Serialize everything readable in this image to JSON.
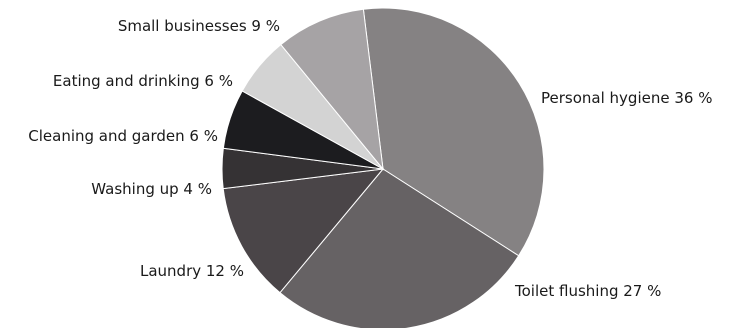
{
  "chart_data": {
    "type": "pie",
    "start_angle_deg": -97,
    "direction": "clockwise",
    "slices": [
      {
        "label": "Personal hygiene",
        "value": 36,
        "label_text": "Personal hygiene 36 %",
        "color": "#858283"
      },
      {
        "label": "Toilet flushing",
        "value": 27,
        "label_text": "Toilet flushing 27 %",
        "color": "#666264"
      },
      {
        "label": "Laundry",
        "value": 12,
        "label_text": "Laundry 12 %",
        "color": "#4a4548"
      },
      {
        "label": "Washing up",
        "value": 4,
        "label_text": "Washing up 4 %",
        "color": "#353234"
      },
      {
        "label": "Cleaning and garden",
        "value": 6,
        "label_text": "Cleaning and garden 6 %",
        "color": "#1c1c1f"
      },
      {
        "label": "Eating and drinking",
        "value": 6,
        "label_text": "Eating and drinking 6 %",
        "color": "#d3d3d3"
      },
      {
        "label": "Small businesses",
        "value": 9,
        "label_text": "Small businesses 9 %",
        "color": "#a6a3a5"
      }
    ]
  }
}
